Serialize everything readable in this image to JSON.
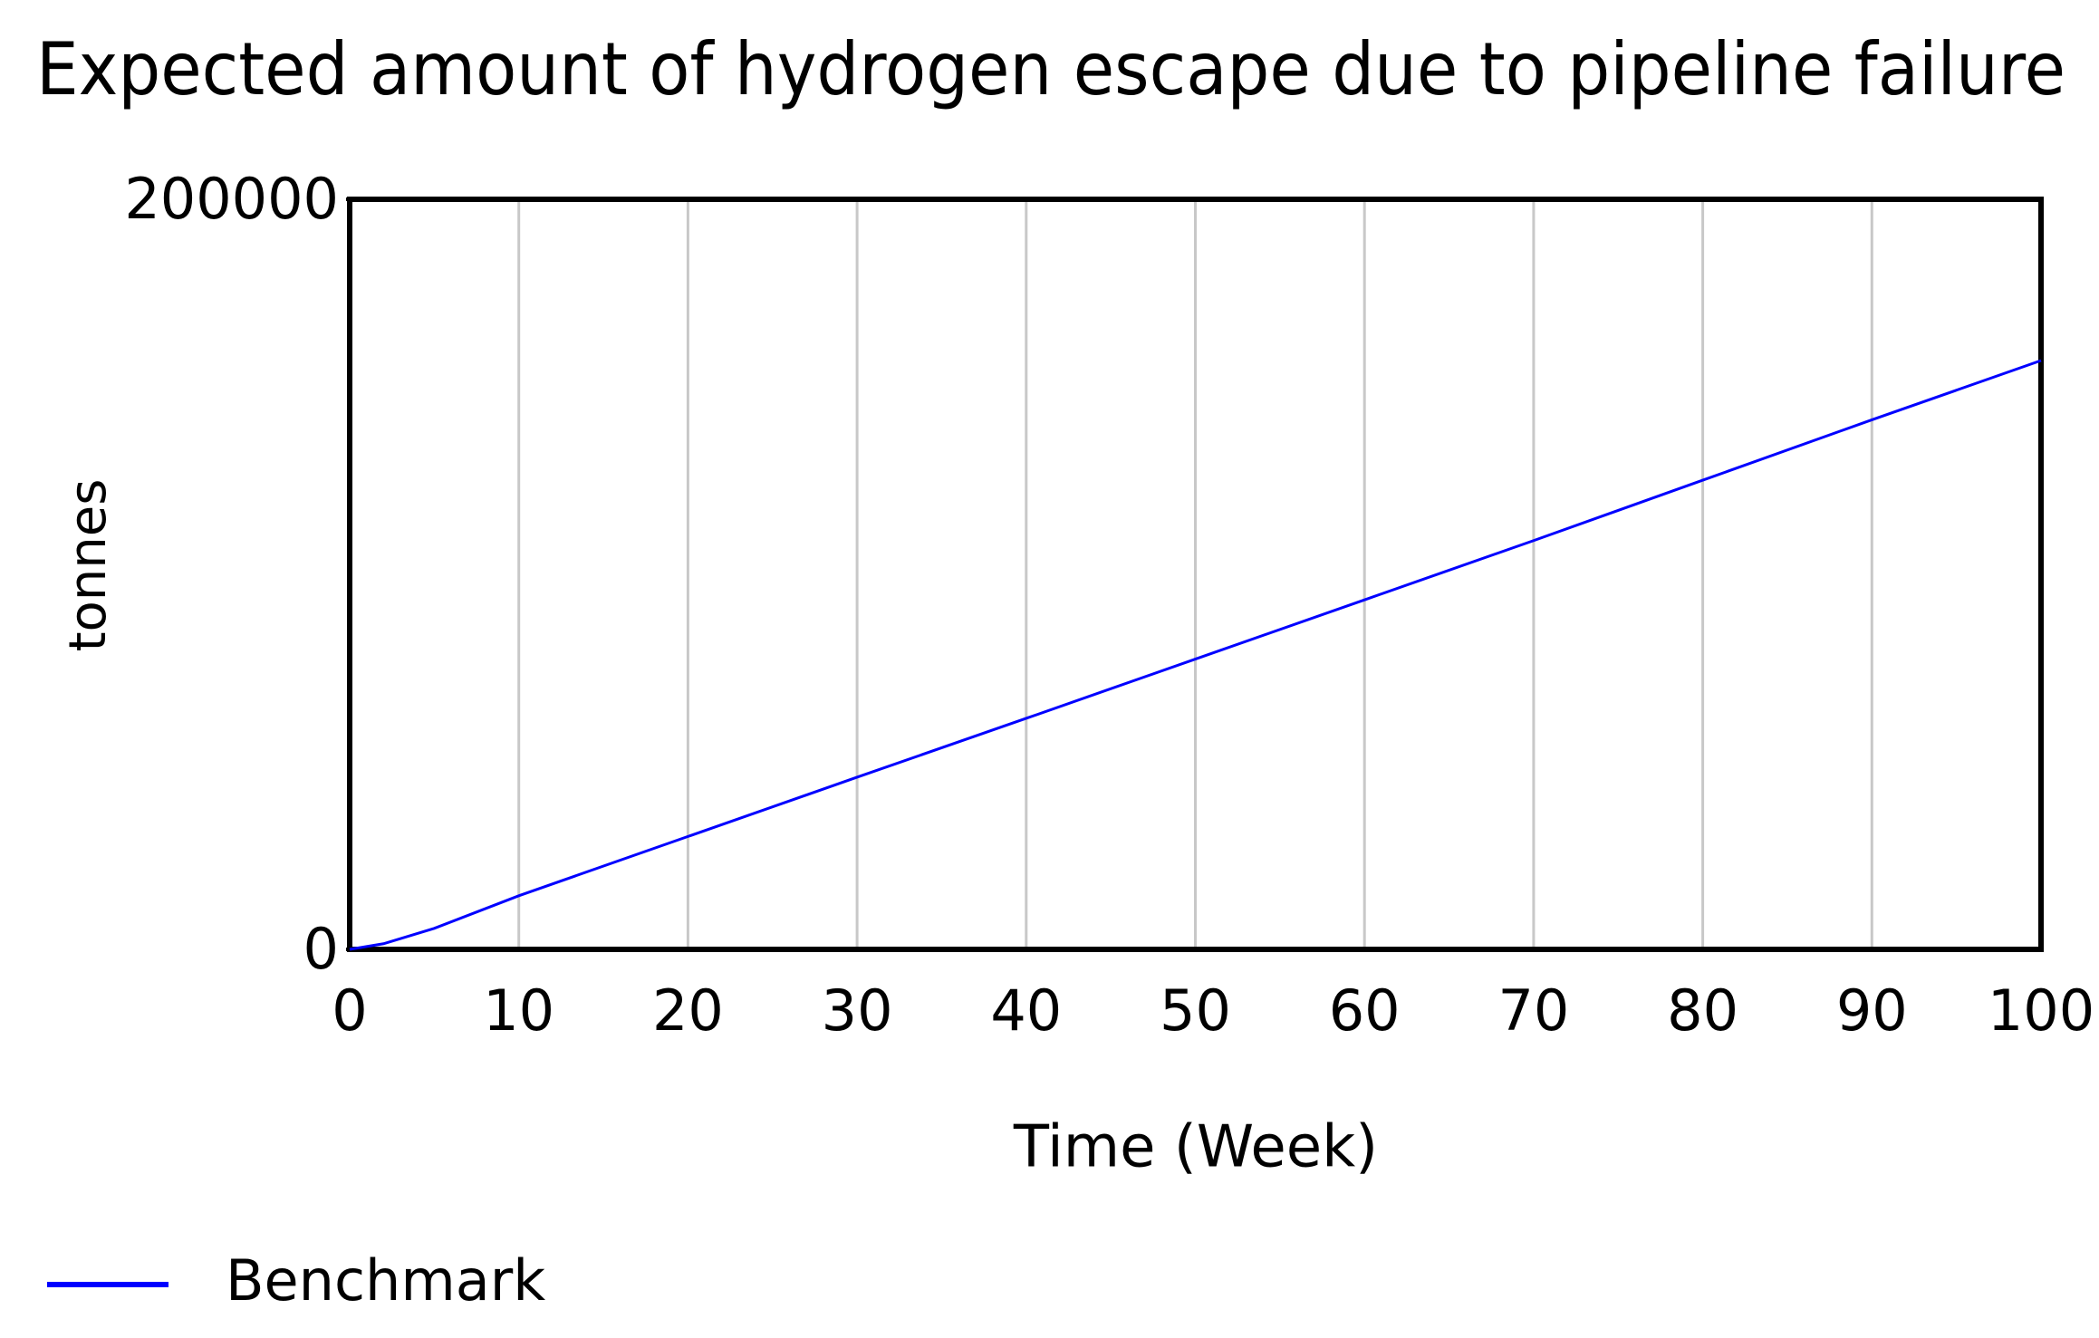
{
  "chart_data": {
    "type": "line",
    "title": "Expected amount of hydrogen escape due to pipeline failure",
    "x_label": "Time (Week)",
    "y_label": "tonnes",
    "x": [
      0,
      2,
      5,
      10,
      20,
      30,
      40,
      50,
      60,
      70,
      80,
      90,
      100
    ],
    "series": [
      {
        "name": "Benchmark",
        "color": "#0000ff",
        "values": [
          0,
          1500,
          5600,
          14300,
          30100,
          45900,
          61600,
          77400,
          93200,
          109000,
          125100,
          141200,
          157000
        ]
      }
    ],
    "xlim": [
      0,
      100
    ],
    "xticks": [
      0,
      10,
      20,
      30,
      40,
      50,
      60,
      70,
      80,
      90,
      100
    ],
    "ylim": [
      0,
      200000
    ],
    "yticks": [
      0,
      200000
    ],
    "grid": "x",
    "legend": "bottom-left"
  }
}
